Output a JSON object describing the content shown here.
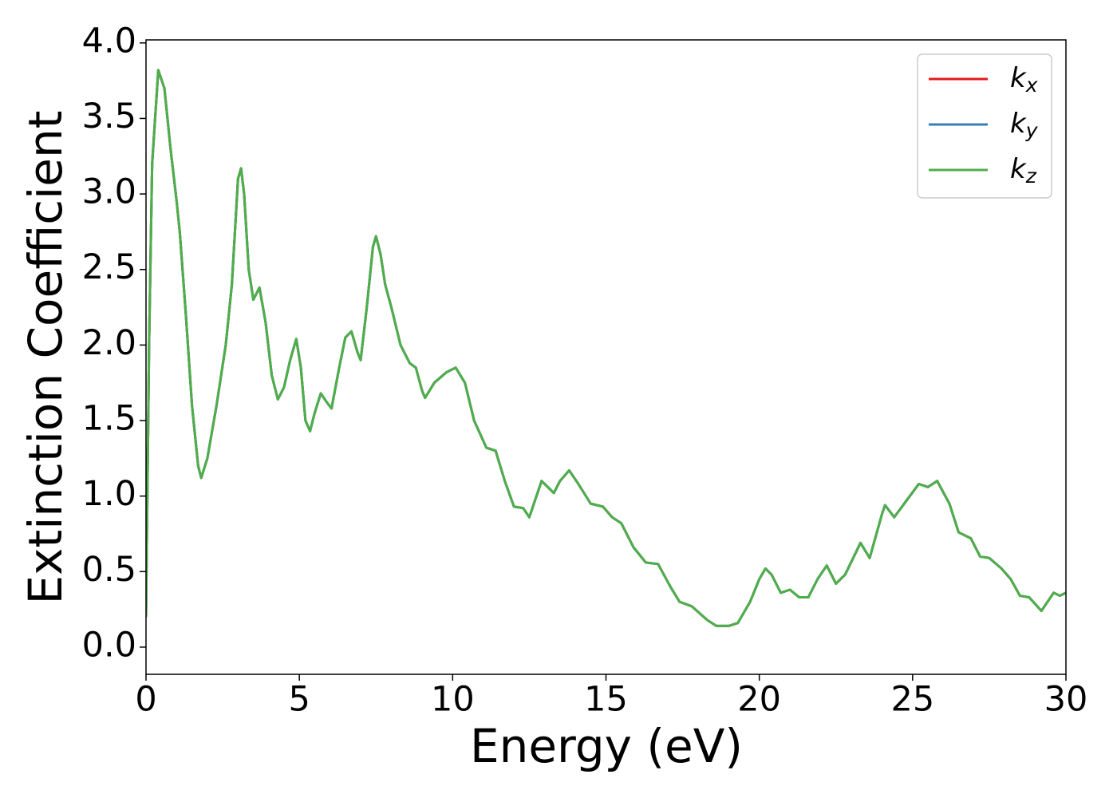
{
  "chart_data": {
    "type": "line",
    "xlabel": "Energy (eV)",
    "ylabel": "Extinction Coefficient",
    "xlim": [
      0,
      30
    ],
    "xticks": [
      0,
      5,
      10,
      15,
      20,
      25,
      30
    ],
    "ylim": [
      -0.18,
      4.02
    ],
    "yticks": [
      {
        "value": 0,
        "label": "0.0"
      },
      0.5,
      {
        "value": 1,
        "label": "1.0"
      },
      1.5,
      {
        "value": 2,
        "label": "2.0"
      },
      2.5,
      {
        "value": 3,
        "label": "3.0"
      },
      3.5,
      {
        "value": 4,
        "label": "4.0"
      }
    ],
    "grid": false,
    "legend": "upper right",
    "x": [
      0.0,
      0.1,
      0.2,
      0.4,
      0.6,
      0.8,
      1.0,
      1.1,
      1.3,
      1.5,
      1.7,
      1.8,
      2.0,
      2.3,
      2.6,
      2.8,
      3.0,
      3.1,
      3.2,
      3.35,
      3.5,
      3.7,
      3.9,
      4.1,
      4.3,
      4.5,
      4.7,
      4.9,
      5.05,
      5.2,
      5.35,
      5.5,
      5.7,
      5.9,
      6.05,
      6.3,
      6.5,
      6.7,
      6.9,
      7.0,
      7.2,
      7.4,
      7.5,
      7.65,
      7.8,
      8.0,
      8.3,
      8.6,
      8.8,
      9.0,
      9.1,
      9.4,
      9.8,
      10.1,
      10.4,
      10.7,
      11.1,
      11.4,
      11.7,
      12.0,
      12.3,
      12.5,
      12.7,
      12.9,
      13.3,
      13.5,
      13.8,
      14.1,
      14.5,
      14.9,
      15.2,
      15.5,
      15.9,
      16.3,
      16.7,
      17.1,
      17.4,
      17.8,
      18.3,
      18.6,
      19.0,
      19.3,
      19.7,
      20.0,
      20.2,
      20.4,
      20.7,
      21.0,
      21.3,
      21.6,
      21.9,
      22.2,
      22.5,
      22.8,
      23.3,
      23.6,
      24.0,
      24.1,
      24.4,
      24.8,
      25.2,
      25.5,
      25.8,
      26.2,
      26.5,
      26.9,
      27.2,
      27.5,
      27.9,
      28.2,
      28.5,
      28.8,
      29.2,
      29.6,
      29.8,
      30.0
    ],
    "series": [
      {
        "name": "kx",
        "color": "#e41a1c",
        "values": [
          0.2,
          2.0,
          3.2,
          3.82,
          3.7,
          3.3,
          2.95,
          2.75,
          2.2,
          1.6,
          1.2,
          1.12,
          1.25,
          1.6,
          2.0,
          2.4,
          3.1,
          3.17,
          3.0,
          2.5,
          2.3,
          2.38,
          2.15,
          1.8,
          1.64,
          1.72,
          1.9,
          2.04,
          1.85,
          1.5,
          1.43,
          1.55,
          1.68,
          1.62,
          1.58,
          1.85,
          2.05,
          2.09,
          1.95,
          1.9,
          2.25,
          2.65,
          2.72,
          2.6,
          2.4,
          2.25,
          2.0,
          1.88,
          1.85,
          1.7,
          1.65,
          1.75,
          1.82,
          1.85,
          1.75,
          1.5,
          1.32,
          1.3,
          1.1,
          0.93,
          0.92,
          0.86,
          0.98,
          1.1,
          1.02,
          1.1,
          1.17,
          1.08,
          0.95,
          0.93,
          0.86,
          0.82,
          0.66,
          0.56,
          0.55,
          0.4,
          0.3,
          0.27,
          0.18,
          0.14,
          0.14,
          0.16,
          0.3,
          0.45,
          0.52,
          0.48,
          0.36,
          0.38,
          0.33,
          0.33,
          0.45,
          0.54,
          0.42,
          0.48,
          0.69,
          0.59,
          0.88,
          0.94,
          0.86,
          0.97,
          1.08,
          1.06,
          1.1,
          0.95,
          0.76,
          0.72,
          0.6,
          0.59,
          0.52,
          0.45,
          0.34,
          0.33,
          0.24,
          0.36,
          0.34,
          0.36
        ]
      },
      {
        "name": "ky",
        "color": "#377eb8",
        "values": [
          0.2,
          2.0,
          3.2,
          3.82,
          3.7,
          3.3,
          2.95,
          2.75,
          2.2,
          1.6,
          1.2,
          1.12,
          1.25,
          1.6,
          2.0,
          2.4,
          3.1,
          3.17,
          3.0,
          2.5,
          2.3,
          2.38,
          2.15,
          1.8,
          1.64,
          1.72,
          1.9,
          2.04,
          1.85,
          1.5,
          1.43,
          1.55,
          1.68,
          1.62,
          1.58,
          1.85,
          2.05,
          2.09,
          1.95,
          1.9,
          2.25,
          2.65,
          2.72,
          2.6,
          2.4,
          2.25,
          2.0,
          1.88,
          1.85,
          1.7,
          1.65,
          1.75,
          1.82,
          1.85,
          1.75,
          1.5,
          1.32,
          1.3,
          1.1,
          0.93,
          0.92,
          0.86,
          0.98,
          1.1,
          1.02,
          1.1,
          1.17,
          1.08,
          0.95,
          0.93,
          0.86,
          0.82,
          0.66,
          0.56,
          0.55,
          0.4,
          0.3,
          0.27,
          0.18,
          0.14,
          0.14,
          0.16,
          0.3,
          0.45,
          0.52,
          0.48,
          0.36,
          0.38,
          0.33,
          0.33,
          0.45,
          0.54,
          0.42,
          0.48,
          0.69,
          0.59,
          0.88,
          0.94,
          0.86,
          0.97,
          1.08,
          1.06,
          1.1,
          0.95,
          0.76,
          0.72,
          0.6,
          0.59,
          0.52,
          0.45,
          0.34,
          0.33,
          0.24,
          0.36,
          0.34,
          0.36
        ]
      },
      {
        "name": "kz",
        "color": "#4daf4a",
        "values": [
          0.2,
          2.0,
          3.2,
          3.82,
          3.7,
          3.3,
          2.95,
          2.75,
          2.2,
          1.6,
          1.2,
          1.12,
          1.25,
          1.6,
          2.0,
          2.4,
          3.1,
          3.17,
          3.0,
          2.5,
          2.3,
          2.38,
          2.15,
          1.8,
          1.64,
          1.72,
          1.9,
          2.04,
          1.85,
          1.5,
          1.43,
          1.55,
          1.68,
          1.62,
          1.58,
          1.85,
          2.05,
          2.09,
          1.95,
          1.9,
          2.25,
          2.65,
          2.72,
          2.6,
          2.4,
          2.25,
          2.0,
          1.88,
          1.85,
          1.7,
          1.65,
          1.75,
          1.82,
          1.85,
          1.75,
          1.5,
          1.32,
          1.3,
          1.1,
          0.93,
          0.92,
          0.86,
          0.98,
          1.1,
          1.02,
          1.1,
          1.17,
          1.08,
          0.95,
          0.93,
          0.86,
          0.82,
          0.66,
          0.56,
          0.55,
          0.4,
          0.3,
          0.27,
          0.18,
          0.14,
          0.14,
          0.16,
          0.3,
          0.45,
          0.52,
          0.48,
          0.36,
          0.38,
          0.33,
          0.33,
          0.45,
          0.54,
          0.42,
          0.48,
          0.69,
          0.59,
          0.88,
          0.94,
          0.86,
          0.97,
          1.08,
          1.06,
          1.1,
          0.95,
          0.76,
          0.72,
          0.6,
          0.59,
          0.52,
          0.45,
          0.34,
          0.33,
          0.24,
          0.36,
          0.34,
          0.36
        ]
      }
    ]
  }
}
